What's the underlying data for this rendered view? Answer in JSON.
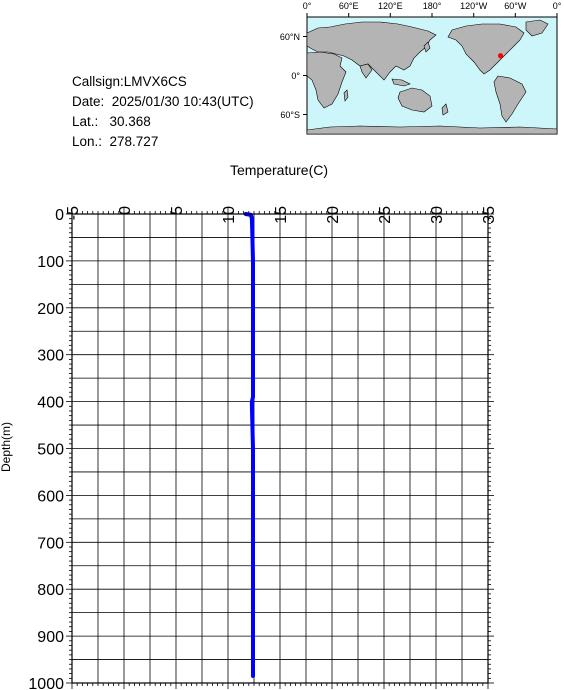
{
  "info": {
    "callsign": "Callsign:LMVX6CS",
    "date": "Date:  2025/01/30 10:43(UTC)",
    "lat": "Lat.:   30.368",
    "lon": "Lon.:  278.727"
  },
  "map": {
    "lon_ticks": [
      "0°",
      "60°E",
      "120°E",
      "180°",
      "120°W",
      "60°W",
      "0°"
    ],
    "lat_ticks": [
      "60°N",
      "0°",
      "60°S"
    ],
    "ocean_color": "#cdf6fa",
    "land_color": "#b4b4b4",
    "marker_color": "#ff0000",
    "marker": {
      "lon": 278.727,
      "lat": 30.368
    }
  },
  "chart_data": {
    "type": "line",
    "xlabel": "Temperature(C)",
    "ylabel": "Depth(m)",
    "xlim": [
      -5,
      35
    ],
    "ylim": [
      0,
      1000
    ],
    "x_ticks": [
      -5,
      0,
      5,
      10,
      15,
      20,
      25,
      30,
      35
    ],
    "y_ticks": [
      0,
      100,
      200,
      300,
      400,
      500,
      600,
      700,
      800,
      900,
      1000
    ],
    "grid": true,
    "line_color": "#0000ff",
    "series": [
      {
        "x": [
          11.7,
          12.2,
          12.3,
          12.4,
          12.4,
          12.4,
          12.4,
          12.3,
          12.3,
          12.4,
          12.4,
          12.4,
          12.4,
          12.4
        ],
        "y": [
          0,
          2,
          10,
          100,
          200,
          300,
          390,
          400,
          410,
          500,
          570,
          580,
          800,
          985
        ]
      }
    ]
  }
}
